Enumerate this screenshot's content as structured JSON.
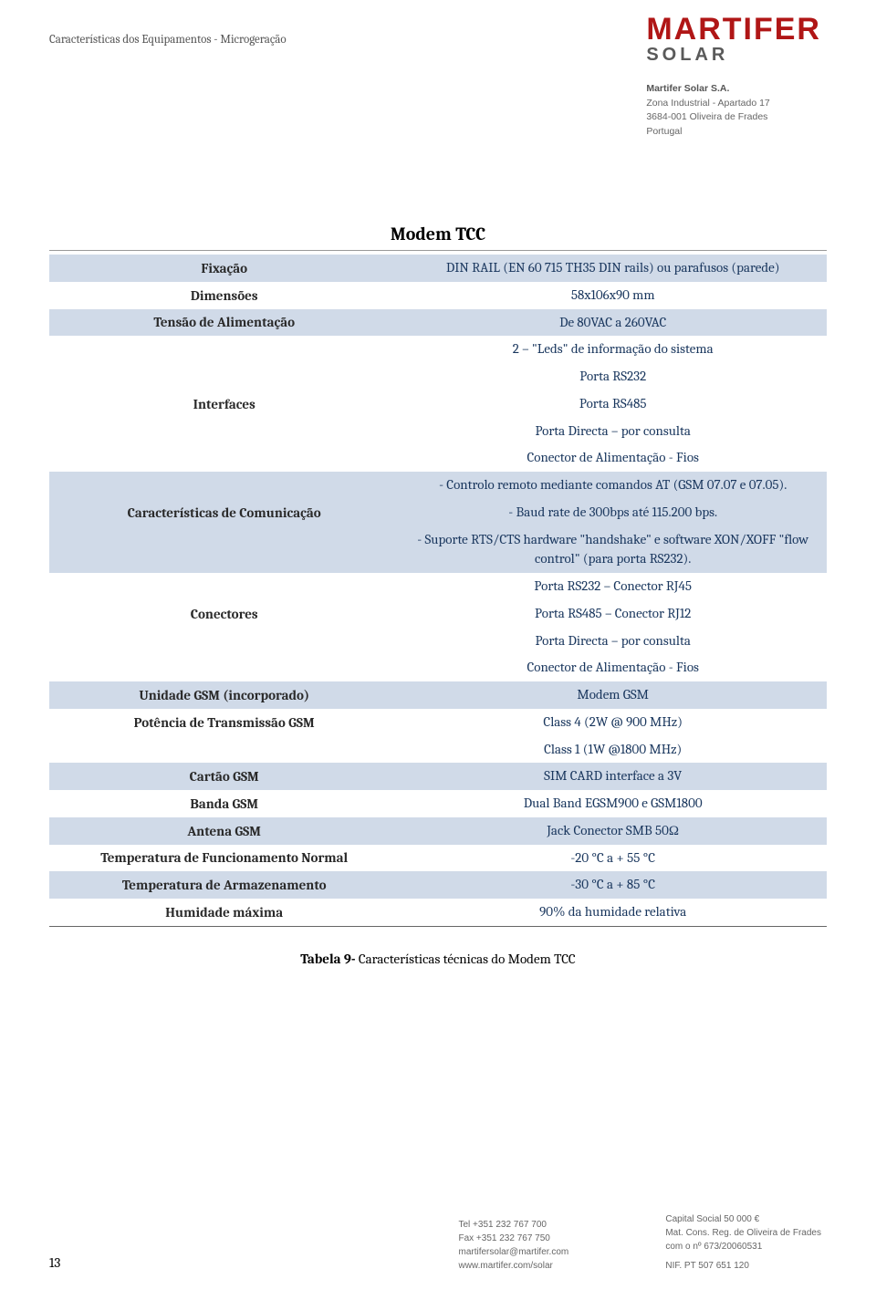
{
  "header": {
    "breadcrumb": "Características dos Equipamentos - Microgeração",
    "logo_main": "MARTIFER",
    "logo_sub": "SOLAR",
    "company_name": "Martifer Solar S.A.",
    "company_addr1": "Zona Industrial - Apartado 17",
    "company_addr2": "3684-001 Oliveira de Frades",
    "company_country": "Portugal"
  },
  "title": "Modem TCC",
  "rows": [
    {
      "label": "Fixação",
      "value": "DIN RAIL (EN 60 715 TH35 DIN rails) ou parafusos (parede)",
      "cls": "blue"
    },
    {
      "label": "Dimensões",
      "value": "58x106x90 mm",
      "cls": "white"
    },
    {
      "label": "Tensão de Alimentação",
      "value": "De 80VAC a 260VAC",
      "cls": "blue"
    },
    {
      "label": "",
      "value": "2 – \"Leds\" de informação do sistema",
      "cls": "white"
    },
    {
      "label": "",
      "value": "Porta RS232",
      "cls": "white"
    },
    {
      "label": "Interfaces",
      "value": "Porta RS485",
      "cls": "white"
    },
    {
      "label": "",
      "value": "Porta Directa – por consulta",
      "cls": "white"
    },
    {
      "label": "",
      "value": "Conector de Alimentação - Fios",
      "cls": "white"
    },
    {
      "label": "",
      "value": "- Controlo remoto mediante comandos AT (GSM 07.07 e 07.05).",
      "cls": "blue"
    },
    {
      "label": "Características de Comunicação",
      "value": "- Baud rate de 300bps até 115.200 bps.",
      "cls": "blue"
    },
    {
      "label": "",
      "value": "- Suporte RTS/CTS hardware \"handshake\" e software XON/XOFF \"flow control\" (para porta RS232).",
      "cls": "blue"
    },
    {
      "label": "",
      "value": "Porta RS232 – Conector RJ45",
      "cls": "white"
    },
    {
      "label": "Conectores",
      "value": "Porta RS485 – Conector RJ12",
      "cls": "white"
    },
    {
      "label": "",
      "value": "Porta Directa – por consulta",
      "cls": "white"
    },
    {
      "label": "",
      "value": "Conector de Alimentação - Fios",
      "cls": "white"
    },
    {
      "label": "Unidade GSM (incorporado)",
      "value": "Modem GSM",
      "cls": "blue"
    },
    {
      "label": "Potência de Transmissão GSM",
      "value": "Class 4 (2W @ 900 MHz)",
      "cls": "white"
    },
    {
      "label": "",
      "value": "Class 1 (1W @1800 MHz)",
      "cls": "white"
    },
    {
      "label": "Cartão GSM",
      "value": "SIM CARD interface a 3V",
      "cls": "blue"
    },
    {
      "label": "Banda GSM",
      "value": "Dual Band EGSM900 e GSM1800",
      "cls": "white"
    },
    {
      "label": "Antena GSM",
      "value": "Jack Conector SMB 50Ω",
      "cls": "blue"
    },
    {
      "label": "Temperatura de Funcionamento Normal",
      "value": "-20 °C a + 55 °C",
      "cls": "white"
    },
    {
      "label": "Temperatura de Armazenamento",
      "value": "-30 °C a + 85 °C",
      "cls": "blue"
    },
    {
      "label": "Humidade máxima",
      "value": "90% da humidade relativa",
      "cls": "white"
    }
  ],
  "caption_prefix": "Tabela 9- ",
  "caption_text": "Características técnicas do Modem TCC",
  "footer": {
    "page": "13",
    "tel": "Tel   +351 232 767 700",
    "fax": "Fax  +351 232 767 750",
    "email": "martifersolar@martifer.com",
    "web": "www.martifer.com/solar",
    "capital": "Capital Social 50 000 €",
    "mat1": "Mat. Cons. Reg. de Oliveira de Frades",
    "mat2": "com o nº 673/20060531",
    "nif": "NIF. PT 507 651 120"
  },
  "colors": {
    "row_blue": "#d0dae8",
    "value_text": "#1a375e",
    "logo_red": "#b01616",
    "logo_gray": "#5a5a5a"
  }
}
